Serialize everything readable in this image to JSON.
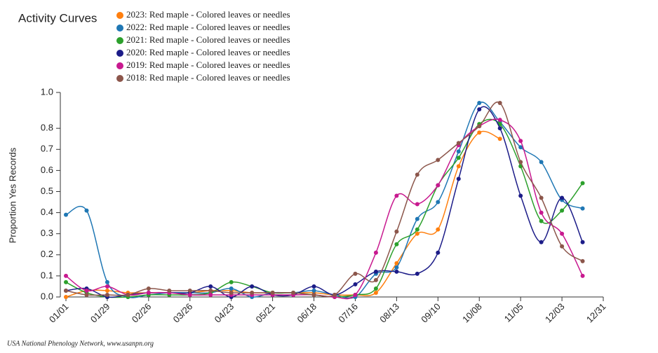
{
  "chart_data": {
    "type": "line",
    "title": "Activity Curves",
    "y_label": "Proportion Yes Records",
    "footer": "USA National Phenology Network, www.usanpn.org",
    "x": [
      0,
      14,
      28,
      42,
      56,
      70,
      84,
      98,
      112,
      126,
      140,
      154,
      168,
      182,
      196,
      210,
      224,
      238,
      252,
      266,
      280,
      294,
      308,
      322,
      336,
      350
    ],
    "xlim": [
      0,
      364
    ],
    "xticks": [
      {
        "value": 0,
        "label": "01/01"
      },
      {
        "value": 28,
        "label": "01/29"
      },
      {
        "value": 56,
        "label": "02/26"
      },
      {
        "value": 84,
        "label": "03/26"
      },
      {
        "value": 112,
        "label": "04/23"
      },
      {
        "value": 140,
        "label": "05/21"
      },
      {
        "value": 168,
        "label": "06/18"
      },
      {
        "value": 196,
        "label": "07/16"
      },
      {
        "value": 224,
        "label": "08/13"
      },
      {
        "value": 252,
        "label": "09/10"
      },
      {
        "value": 280,
        "label": "10/08"
      },
      {
        "value": 308,
        "label": "11/05"
      },
      {
        "value": 336,
        "label": "12/03"
      },
      {
        "value": 364,
        "label": "12/31"
      }
    ],
    "ylim": [
      0,
      0.97
    ],
    "yticks": [
      {
        "value": 0,
        "label": "0.0"
      },
      0.1,
      0.2,
      0.3,
      0.4,
      0.5,
      0.6,
      0.7,
      0.8,
      {
        "value": 0.97,
        "label": "1.0"
      }
    ],
    "series": [
      {
        "name": "2023: Red maple - Colored leaves or needles",
        "color": "#ff7f0e",
        "values": [
          0.0,
          0.03,
          0.03,
          0.02,
          0.02,
          0.02,
          0.02,
          0.03,
          0.03,
          0.02,
          0.02,
          0.02,
          0.02,
          0.01,
          0.01,
          0.02,
          0.16,
          0.3,
          0.32,
          0.62,
          0.78,
          0.75,
          null,
          null,
          null,
          null
        ]
      },
      {
        "name": "2022: Red maple - Colored leaves or needles",
        "color": "#1f77b4",
        "values": [
          0.39,
          0.41,
          0.07,
          0.0,
          0.01,
          0.02,
          0.02,
          0.02,
          0.04,
          0.0,
          0.02,
          0.02,
          0.03,
          0.01,
          0.0,
          0.11,
          0.14,
          0.37,
          0.45,
          0.69,
          0.92,
          0.83,
          0.71,
          0.64,
          0.46,
          0.42
        ]
      },
      {
        "name": "2021: Red maple - Colored leaves or needles",
        "color": "#2ca02c",
        "values": [
          0.07,
          0.02,
          0.0,
          0.0,
          0.01,
          0.01,
          0.01,
          0.02,
          0.07,
          0.05,
          0.02,
          0.02,
          0.01,
          0.0,
          0.01,
          0.04,
          0.25,
          0.32,
          0.53,
          0.66,
          0.82,
          0.82,
          0.62,
          0.36,
          0.41,
          0.54
        ]
      },
      {
        "name": "2020: Red maple - Colored leaves or needles",
        "color": "#1c1c88",
        "values": [
          0.03,
          0.04,
          0.0,
          0.01,
          0.02,
          0.02,
          0.02,
          0.05,
          0.0,
          0.05,
          0.01,
          0.01,
          0.05,
          0.01,
          0.06,
          0.12,
          0.12,
          0.11,
          0.21,
          0.56,
          0.89,
          0.8,
          0.48,
          0.26,
          0.47,
          0.26
        ]
      },
      {
        "name": "2019: Red maple - Colored leaves or needles",
        "color": "#c8198f",
        "values": [
          0.1,
          0.03,
          0.05,
          0.01,
          0.02,
          0.02,
          0.01,
          0.01,
          0.01,
          0.01,
          0.01,
          0.01,
          0.01,
          0.0,
          0.01,
          0.21,
          0.48,
          0.44,
          0.53,
          0.72,
          0.81,
          0.84,
          0.74,
          0.4,
          0.3,
          0.1
        ]
      },
      {
        "name": "2018: Red maple - Colored leaves or needles",
        "color": "#8c564b",
        "values": [
          0.03,
          0.01,
          0.01,
          0.01,
          0.04,
          0.03,
          0.03,
          0.03,
          0.02,
          0.02,
          0.02,
          0.02,
          0.01,
          0.01,
          0.11,
          0.08,
          0.31,
          0.58,
          0.65,
          0.73,
          0.81,
          0.92,
          0.64,
          0.47,
          0.24,
          0.17
        ]
      }
    ]
  }
}
